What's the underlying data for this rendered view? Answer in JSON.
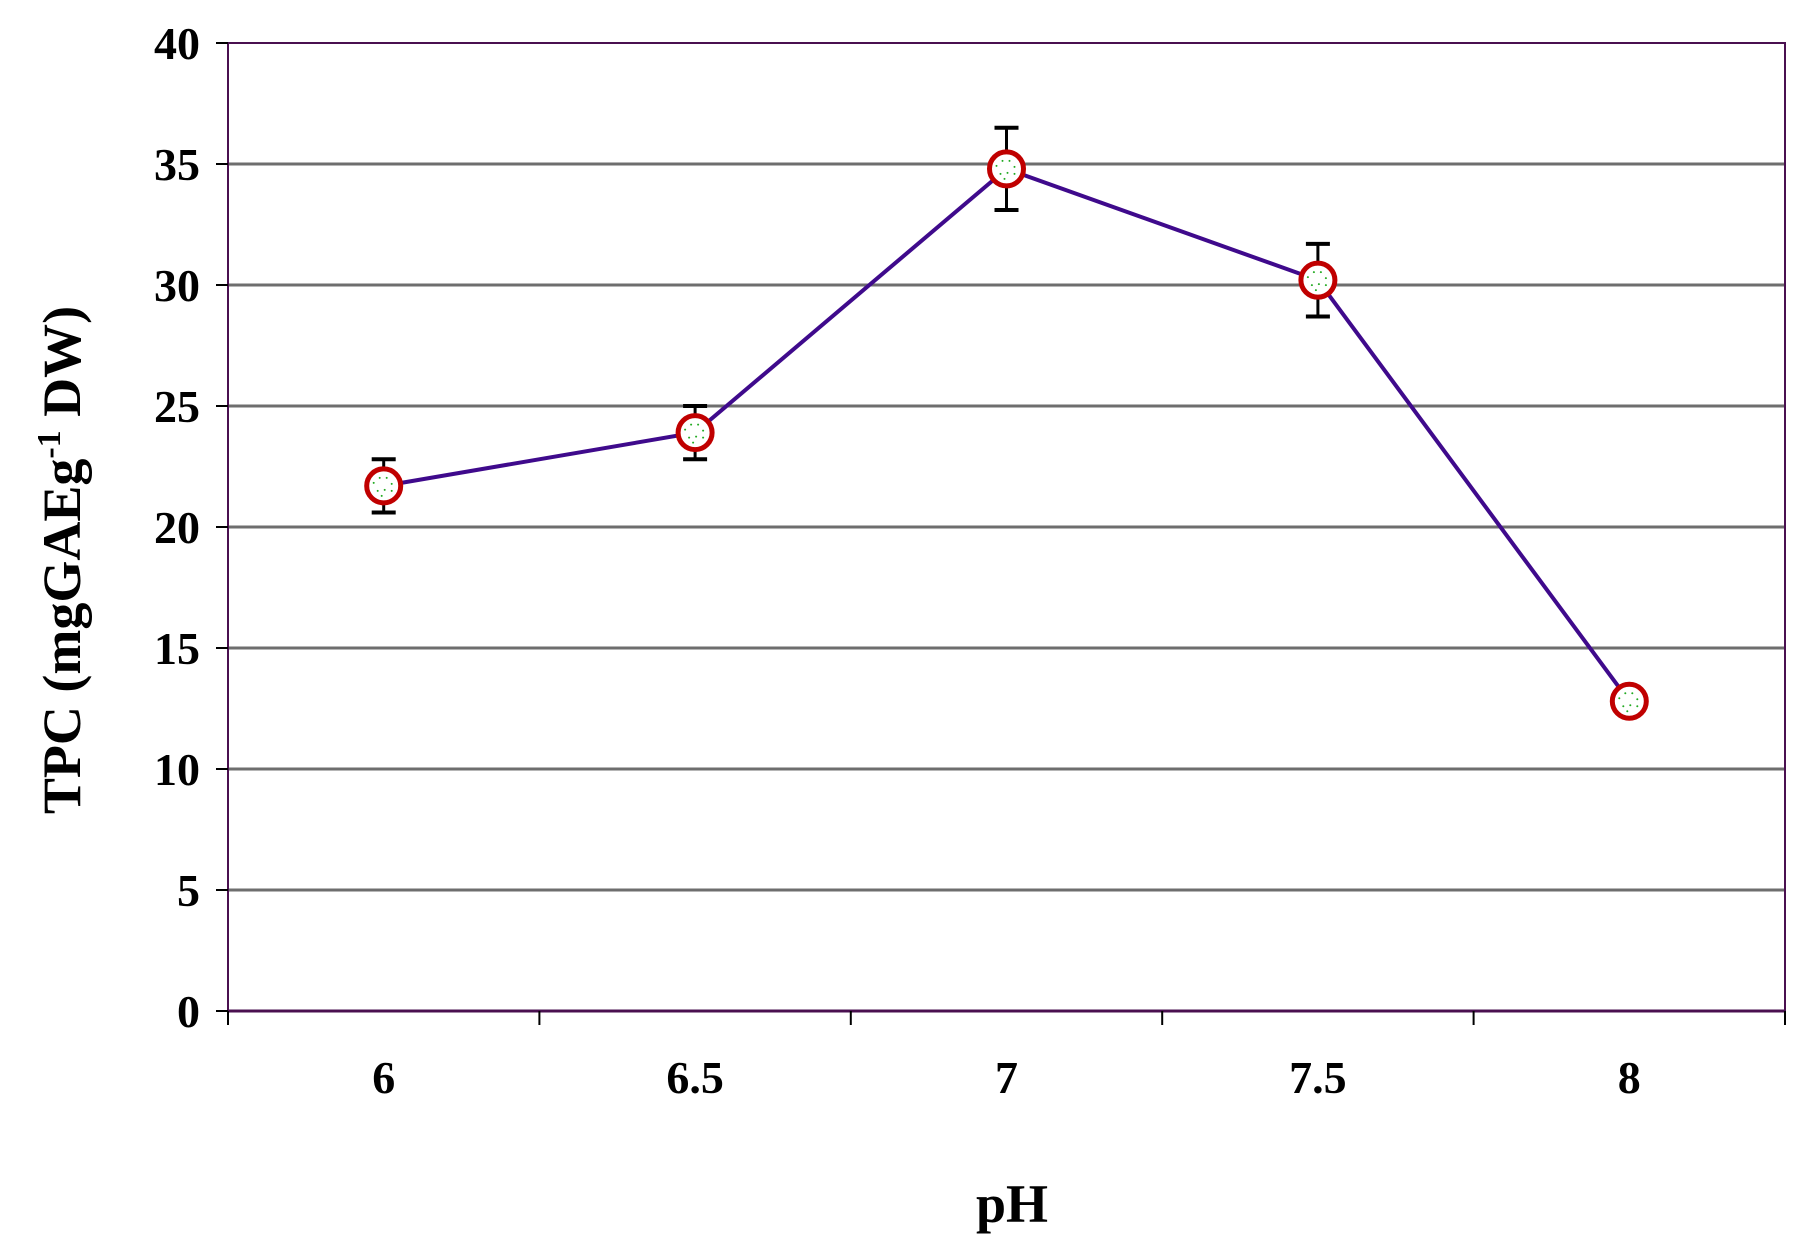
{
  "chart_data": {
    "type": "line",
    "title": "",
    "xlabel": "pH",
    "ylabel": "TPC (mgGAEg",
    "ylabel_sup": "-1",
    "ylabel_tail": " DW)",
    "categories": [
      "6",
      "6.5",
      "7",
      "7.5",
      "8"
    ],
    "series": [
      {
        "name": "TPC",
        "values": [
          21.7,
          23.9,
          34.8,
          30.2,
          12.8
        ],
        "error": [
          1.1,
          1.1,
          1.7,
          1.5,
          0.3
        ]
      }
    ],
    "ylim": [
      0,
      40
    ],
    "yticks": [
      0,
      5,
      10,
      15,
      20,
      25,
      30,
      35,
      40
    ],
    "grid": true,
    "colors": {
      "line": "#3f0a8c",
      "marker_edge": "#c00000",
      "marker_dots": "#22aa22",
      "grid": "#6e6e6e",
      "frame": "#4a1050",
      "error": "#000000"
    }
  }
}
